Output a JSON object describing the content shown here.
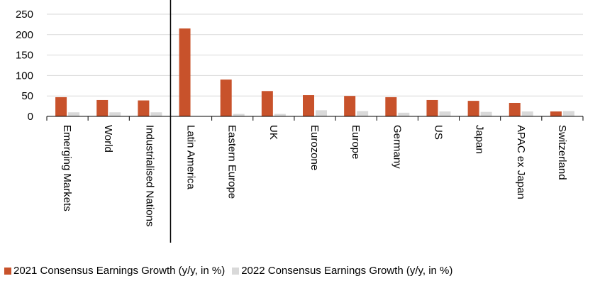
{
  "chart_data": {
    "type": "bar",
    "categories": [
      "Emerging Markets",
      "World",
      "Industrialised Nations",
      "Latin America",
      "Eastern Europe",
      "UK",
      "Eurozone",
      "Europe",
      "Germany",
      "US",
      "Japan",
      "APAC ex Japan",
      "Switzerland"
    ],
    "series": [
      {
        "name": "2021 Consensus Earnings Growth (y/y, in %)",
        "color": "#C8522B",
        "values": [
          47,
          40,
          39,
          215,
          90,
          62,
          52,
          50,
          47,
          40,
          38,
          33,
          12
        ]
      },
      {
        "name": "2022 Consensus Earnings Growth (y/y, in %)",
        "color": "#D9D9D9",
        "values": [
          10,
          10,
          10,
          0,
          6,
          6,
          15,
          13,
          9,
          12,
          11,
          12,
          13
        ]
      }
    ],
    "y_ticks": [
      "0",
      "50",
      "100",
      "150",
      "200",
      "250"
    ],
    "ylim": [
      0,
      250
    ],
    "grid": true,
    "legend_position": "bottom",
    "separator_after_index": 2
  }
}
